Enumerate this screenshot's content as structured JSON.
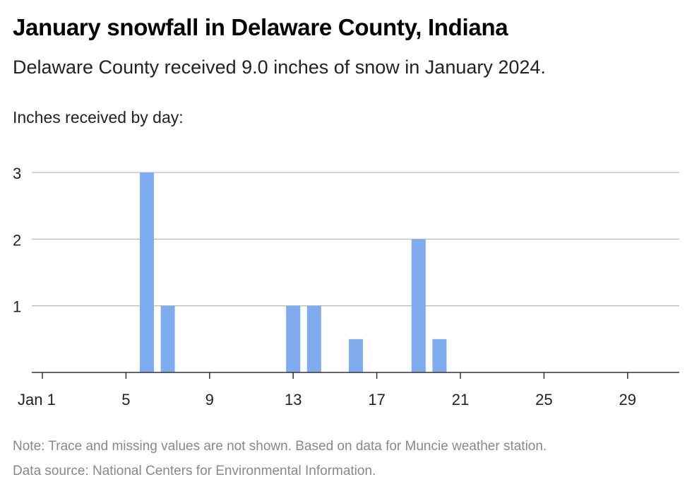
{
  "header": {
    "title": "January snowfall in Delaware County, Indiana",
    "subtitle": "Delaware County received 9.0 inches of snow in January 2024.",
    "axis_caption": "Inches received by day:"
  },
  "footer": {
    "note": "Note: Trace and missing values are not shown. Based on data for Muncie weather station.",
    "source": "Data source: National Centers for Environmental Information."
  },
  "chart_data": {
    "type": "bar",
    "xlabel": "",
    "ylabel": "Inches received by day:",
    "x": [
      6,
      7,
      13,
      14,
      16,
      19,
      20
    ],
    "values": [
      3,
      1,
      1,
      1,
      0.5,
      2,
      0.5
    ],
    "xlim": [
      1,
      31
    ],
    "ylim": [
      0,
      3
    ],
    "x_ticks": [
      1,
      5,
      9,
      13,
      17,
      21,
      25,
      29
    ],
    "x_tick_labels": [
      "Jan 1",
      "5",
      "9",
      "13",
      "17",
      "21",
      "25",
      "29"
    ],
    "y_ticks": [
      1,
      2,
      3
    ],
    "y_tick_labels": [
      "1",
      "2",
      "3"
    ],
    "grid": true,
    "bar_color": "#7eacee"
  }
}
